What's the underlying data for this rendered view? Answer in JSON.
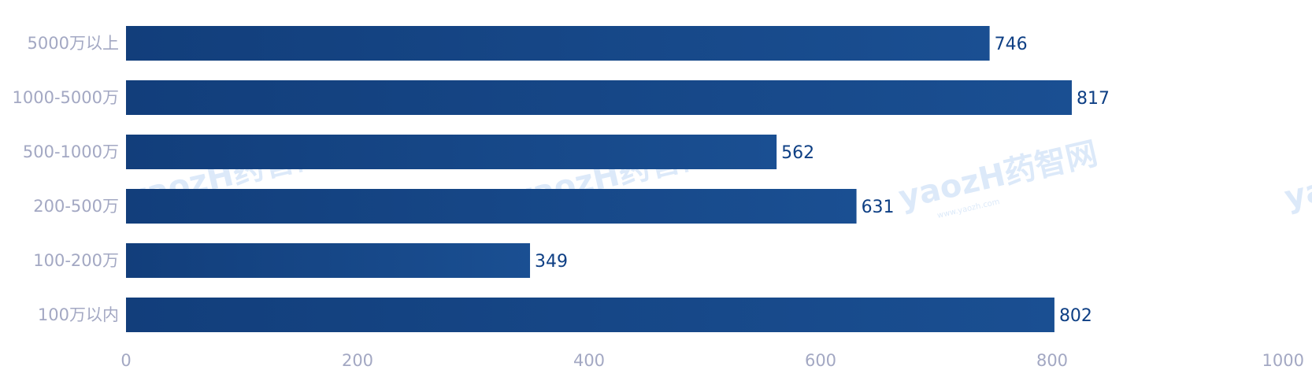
{
  "watermark": {
    "text": "yaozH药智网",
    "sub_text": "www.yaozh.com"
  },
  "chart_data": {
    "type": "bar",
    "orientation": "horizontal",
    "categories": [
      "5000万以上",
      "1000-5000万",
      "500-1000万",
      "200-500万",
      "100-200万",
      "100万以内"
    ],
    "values": [
      746,
      817,
      562,
      631,
      349,
      802
    ],
    "xlim": [
      0,
      1000
    ],
    "x_ticks": [
      "0",
      "200",
      "400",
      "600",
      "800",
      "1000"
    ],
    "title": "",
    "xlabel": "",
    "ylabel": "",
    "grid": false,
    "legend": "none",
    "colors": {
      "bar_dark": "#123e7b",
      "bar_light": "#1a4f92",
      "label": "#0e3f84",
      "axis_text": "#a3a8c3"
    }
  }
}
